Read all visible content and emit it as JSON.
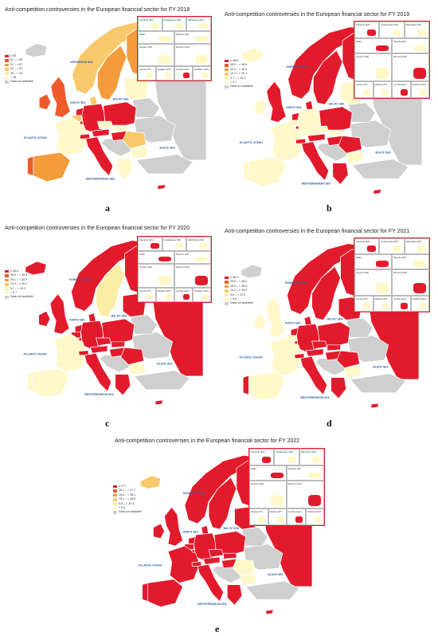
{
  "colors": {
    "c1": "#e21b2c",
    "c2": "#ee5a2a",
    "c3": "#f49b3b",
    "c4": "#f8c96a",
    "c5": "#fbeea6",
    "c6": "#fff8c8",
    "na": "#cfcfcf",
    "sea": "#ffffff",
    "border": "#ffffff"
  },
  "sea_labels": [
    "NORWEGIAN SEA",
    "NORTH SEA",
    "BALTIC SEA",
    "ATLANTIC OCEAN",
    "BLACK SEA",
    "MEDITERRANEAN SEA"
  ],
  "inset_labels": [
    "Canarias (ES)",
    "Guadeloupe (FR)",
    "Martinique (FR)",
    "Mayotte (FR)",
    "Malta",
    "Guyane (FR)",
    "Réunion (FR)",
    "Açores (PT)",
    "Madeira (PT)",
    "Liechtenstein",
    "Svalbard (NO)"
  ],
  "not_available_label": "Data not available",
  "panels": [
    {
      "caption": "a",
      "title": "Anti-competition controversies in the European financial sector for FY 2018",
      "legend": [
        "≥ 83",
        "67 – < 83",
        "51 – < 67",
        "34 – < 51",
        "18 – < 34",
        "< 18"
      ],
      "country_classes": {
        "IS": "na",
        "NO": "c4",
        "SE": "c3",
        "FI": "c3",
        "GB": "c2",
        "IE": "c2",
        "DK": "c4",
        "NL": "c1",
        "BE": "c4",
        "DE": "c1",
        "PL": "c1",
        "FR": "c6",
        "ES": "c3",
        "PT": "c2",
        "IT": "c1",
        "AT": "c1",
        "CH": "c1",
        "CZ": "c6",
        "SK": "c6",
        "HU": "c1",
        "RO": "c4",
        "BG": "c6",
        "GR": "c6",
        "BALT": "c6",
        "BY": "na",
        "UA": "na",
        "RU": "na",
        "TR": "na",
        "BALK": "na",
        "CY": "c1",
        "LU": "c1"
      }
    },
    {
      "caption": "b",
      "title": "Anti-competition controversies in the European financial sector for FY 2019",
      "legend": [
        "≥ 48.6",
        "38.9 – < 48.6",
        "29.1 – < 38.9",
        "19.4 – < 29.1",
        "9.7 – < 19.4",
        "< 9.7"
      ],
      "country_classes": {
        "IS": "c6",
        "NO": "c1",
        "SE": "c1",
        "FI": "c1",
        "GB": "c1",
        "IE": "c6",
        "DK": "c1",
        "NL": "c1",
        "BE": "c6",
        "DE": "c6",
        "PL": "c1",
        "FR": "c6",
        "ES": "c6",
        "PT": "c6",
        "IT": "c1",
        "AT": "c1",
        "CH": "c1",
        "CZ": "c6",
        "SK": "c6",
        "HU": "c1",
        "RO": "c1",
        "BG": "c6",
        "GR": "c1",
        "BALT": "c6",
        "BY": "na",
        "UA": "na",
        "RU": "na",
        "TR": "na",
        "BALK": "na",
        "CY": "c1",
        "LU": "c1"
      }
    },
    {
      "caption": "c",
      "title": "Anti-competition controversies in the European financial sector for FY 2020",
      "legend": [
        "≥ 48.6",
        "38.9 – < 48.6",
        "29.1 – < 38.9",
        "19.4 – < 29.1",
        "9.7 – < 19.4",
        "< 9.7"
      ],
      "country_classes": {
        "IS": "c1",
        "NO": "c1",
        "SE": "c5",
        "FI": "c1",
        "GB": "c1",
        "IE": "c1",
        "DK": "c1",
        "NL": "c1",
        "BE": "c1",
        "DE": "c1",
        "PL": "c1",
        "FR": "c6",
        "ES": "c6",
        "PT": "c6",
        "IT": "c1",
        "AT": "c1",
        "CH": "c1",
        "CZ": "c1",
        "SK": "c1",
        "HU": "c1",
        "RO": "c1",
        "BG": "c6",
        "GR": "c1",
        "BALT": "c1",
        "BY": "na",
        "UA": "na",
        "RU": "c1",
        "TR": "na",
        "BALK": "na",
        "CY": "c1",
        "LU": "c1"
      }
    },
    {
      "caption": "d",
      "title": "Anti-competition controversies in the European financial sector for FY 2021",
      "legend": [
        "≥ 48.2",
        "38.5 – < 48.2",
        "28.9 – < 38.5",
        "19.3 – < 28.9",
        "9.6 – < 19.3",
        "< 9.6"
      ],
      "country_classes": {
        "IS": "na",
        "NO": "c1",
        "SE": "c1",
        "FI": "c1",
        "GB": "c6",
        "IE": "c6",
        "DK": "c1",
        "NL": "c1",
        "BE": "c6",
        "DE": "c1",
        "PL": "c1",
        "FR": "c6",
        "ES": "c6",
        "PT": "c1",
        "IT": "c1",
        "AT": "c1",
        "CH": "c1",
        "CZ": "c1",
        "SK": "c1",
        "HU": "c1",
        "RO": "c1",
        "BG": "c6",
        "GR": "c1",
        "BALT": "c1",
        "BY": "na",
        "UA": "na",
        "RU": "c1",
        "TR": "na",
        "BALK": "na",
        "CY": "c1",
        "LU": "c1"
      }
    },
    {
      "caption": "e",
      "title": "Anti-competition controversies in the European financial sector for FY 2022",
      "legend": [
        "≥ 47.7",
        "38.1 – < 47.7",
        "28.6 – < 38.1",
        "19.1 – < 28.6",
        "9.5 – < 19.1",
        "< 9.5"
      ],
      "country_classes": {
        "IS": "c4",
        "NO": "c1",
        "SE": "c1",
        "FI": "c1",
        "GB": "c1",
        "IE": "c1",
        "DK": "c1",
        "NL": "c1",
        "BE": "c1",
        "DE": "c1",
        "PL": "c1",
        "FR": "c1",
        "ES": "c1",
        "PT": "c1",
        "IT": "c1",
        "AT": "c1",
        "CH": "c1",
        "CZ": "c1",
        "SK": "c1",
        "HU": "c1",
        "RO": "c6",
        "BG": "c6",
        "GR": "c1",
        "BALT": "c1",
        "BY": "na",
        "UA": "na",
        "RU": "c1",
        "TR": "na",
        "BALK": "na",
        "CY": "c1",
        "LU": "c1"
      }
    }
  ]
}
